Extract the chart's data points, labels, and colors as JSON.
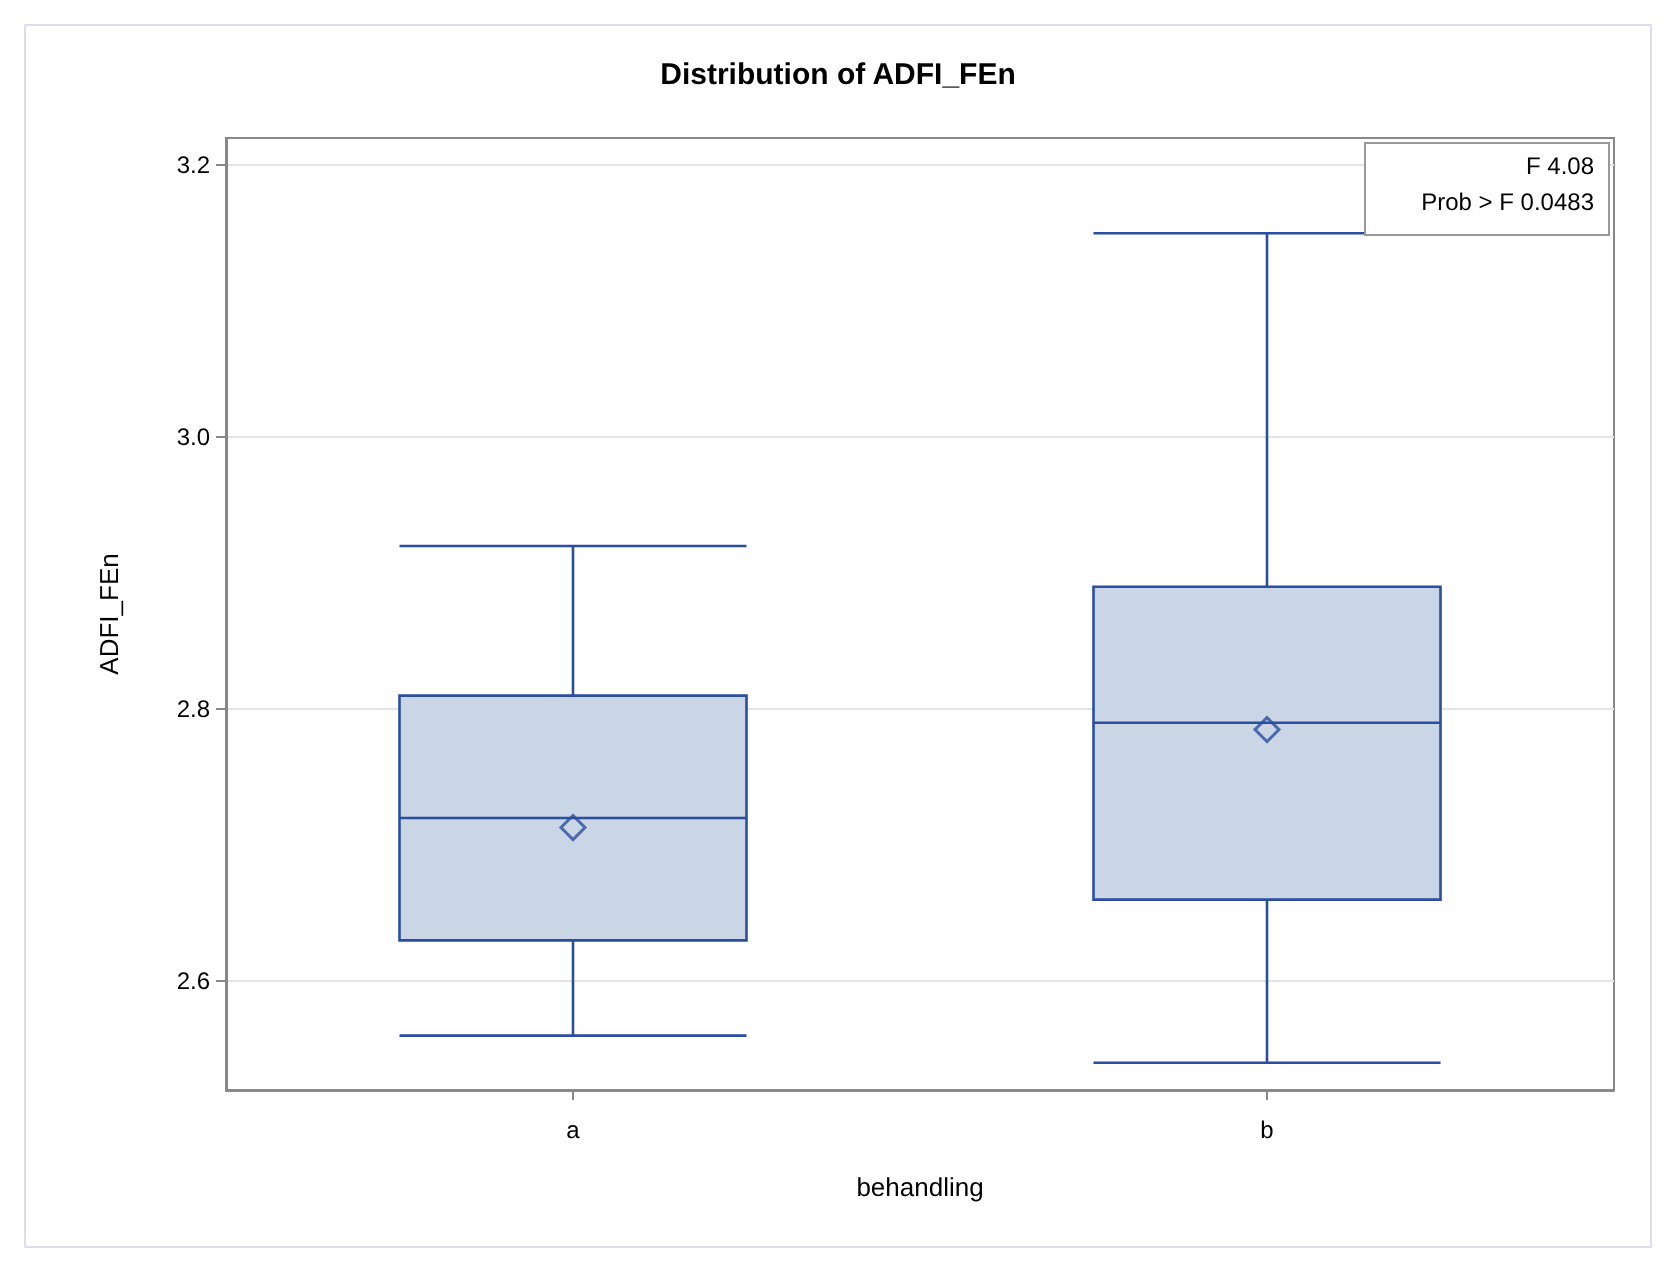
{
  "chart_data": {
    "type": "box",
    "title": "Distribution of ADFI_FEn",
    "xlabel": "behandling",
    "ylabel": "ADFI_FEn",
    "categories": [
      "a",
      "b"
    ],
    "boxes": [
      {
        "low": 2.56,
        "q1": 2.63,
        "median": 2.72,
        "q3": 2.81,
        "high": 2.92,
        "mean": 2.713
      },
      {
        "low": 2.54,
        "q1": 2.66,
        "median": 2.79,
        "q3": 2.89,
        "high": 3.15,
        "mean": 2.785
      }
    ],
    "color": "#cad5e5",
    "ylim": [
      2.52,
      3.22
    ],
    "yticks": [
      2.6,
      2.8,
      {
        "value": 3.0,
        "label": "3.0"
      },
      3.2
    ],
    "grid": "y",
    "annotations": [
      "F 4.08",
      "Prob > F 0.0483"
    ]
  }
}
